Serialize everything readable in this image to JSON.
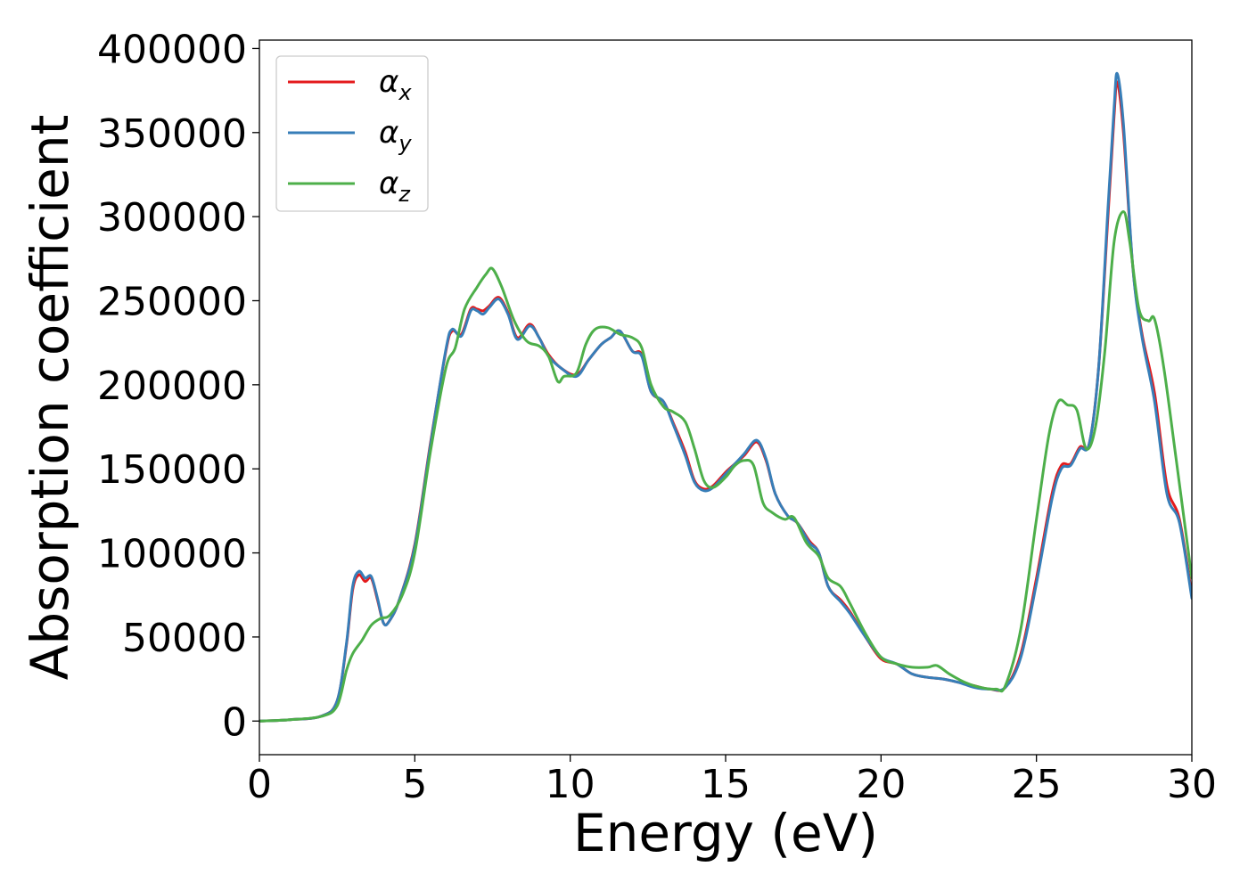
{
  "chart_data": {
    "type": "line",
    "xlabel": "Energy (eV)",
    "ylabel": "Absorption coefficient",
    "xlim": [
      0,
      30
    ],
    "ylim": [
      -20000,
      405000
    ],
    "xticks": [
      0,
      5,
      10,
      15,
      20,
      25,
      30
    ],
    "yticks": [
      0,
      50000,
      100000,
      150000,
      200000,
      250000,
      300000,
      350000,
      400000
    ],
    "grid": false,
    "legend_position": "top-left",
    "series": [
      {
        "name": "αx",
        "symbol": "α",
        "subscript": "x",
        "color": "#e41a1c",
        "x": [
          0,
          1,
          2,
          2.5,
          2.8,
          3.0,
          3.2,
          3.4,
          3.6,
          3.8,
          4.0,
          4.2,
          4.5,
          5.0,
          5.5,
          6.0,
          6.2,
          6.5,
          6.8,
          7.0,
          7.2,
          7.4,
          7.7,
          8.0,
          8.3,
          8.7,
          9.0,
          9.3,
          9.7,
          10.2,
          10.6,
          11.0,
          11.3,
          11.6,
          12.0,
          12.3,
          12.6,
          13.0,
          13.3,
          13.7,
          14.0,
          14.3,
          14.6,
          15.0,
          15.3,
          15.6,
          16.0,
          16.3,
          16.6,
          17.0,
          17.3,
          17.7,
          18.0,
          18.3,
          18.7,
          19.0,
          19.5,
          20.0,
          20.5,
          21.0,
          21.5,
          22.0,
          22.5,
          23.0,
          23.5,
          24.0,
          24.5,
          25.0,
          25.5,
          25.8,
          26.1,
          26.4,
          26.7,
          27.0,
          27.3,
          27.5,
          27.6,
          27.8,
          28.1,
          28.4,
          28.8,
          29.2,
          29.6,
          30.0
        ],
        "y": [
          0,
          800,
          3000,
          12000,
          45000,
          78000,
          87000,
          83000,
          85000,
          72000,
          58000,
          60000,
          72000,
          105000,
          165000,
          220000,
          232000,
          230000,
          245000,
          245000,
          244000,
          247000,
          252000,
          243000,
          228000,
          236000,
          228000,
          218000,
          210000,
          206000,
          215000,
          224000,
          228000,
          232000,
          220000,
          218000,
          196000,
          190000,
          178000,
          160000,
          143000,
          138000,
          140000,
          148000,
          153000,
          158000,
          166000,
          155000,
          135000,
          122000,
          118000,
          107000,
          100000,
          80000,
          72000,
          65000,
          50000,
          37000,
          34000,
          28000,
          26000,
          25000,
          23000,
          21000,
          19000,
          20000,
          40000,
          85000,
          135000,
          152000,
          153000,
          163000,
          165000,
          210000,
          300000,
          360000,
          380000,
          350000,
          270000,
          230000,
          195000,
          140000,
          120000,
          75000
        ]
      },
      {
        "name": "αy",
        "symbol": "α",
        "subscript": "y",
        "color": "#377eb8",
        "x": [
          0,
          1,
          2,
          2.5,
          2.8,
          3.0,
          3.2,
          3.4,
          3.6,
          3.8,
          4.0,
          4.2,
          4.5,
          5.0,
          5.5,
          6.0,
          6.2,
          6.5,
          6.8,
          7.0,
          7.2,
          7.4,
          7.7,
          8.0,
          8.3,
          8.7,
          9.0,
          9.3,
          9.7,
          10.2,
          10.6,
          11.0,
          11.3,
          11.6,
          12.0,
          12.3,
          12.6,
          13.0,
          13.3,
          13.7,
          14.0,
          14.3,
          14.6,
          15.0,
          15.3,
          15.6,
          16.0,
          16.3,
          16.6,
          17.0,
          17.3,
          17.7,
          18.0,
          18.3,
          18.7,
          19.0,
          19.5,
          20.0,
          20.5,
          21.0,
          21.5,
          22.0,
          22.5,
          23.0,
          23.5,
          24.0,
          24.5,
          25.0,
          25.5,
          25.8,
          26.1,
          26.4,
          26.7,
          27.0,
          27.3,
          27.5,
          27.6,
          27.8,
          28.1,
          28.4,
          28.8,
          29.2,
          29.6,
          30.0
        ],
        "y": [
          0,
          800,
          3000,
          12000,
          46000,
          80000,
          89000,
          85000,
          86000,
          73000,
          58000,
          60000,
          72000,
          104000,
          164000,
          221000,
          233000,
          229000,
          244000,
          244000,
          242000,
          246000,
          251000,
          242000,
          227000,
          235000,
          228000,
          217000,
          210000,
          205000,
          215000,
          224000,
          228000,
          232000,
          220000,
          217000,
          196000,
          190000,
          177000,
          158000,
          142000,
          137000,
          139000,
          147000,
          153000,
          159000,
          167000,
          156000,
          135000,
          122000,
          118000,
          106000,
          100000,
          80000,
          71000,
          64000,
          50000,
          38000,
          34000,
          28000,
          26000,
          25000,
          23000,
          20000,
          19000,
          20000,
          38000,
          82000,
          132000,
          150000,
          152000,
          162000,
          165000,
          210000,
          305000,
          365000,
          385000,
          355000,
          270000,
          228000,
          190000,
          135000,
          118000,
          73000
        ]
      },
      {
        "name": "αz",
        "symbol": "α",
        "subscript": "z",
        "color": "#4daf4a",
        "x": [
          0,
          1,
          2,
          2.5,
          2.8,
          3.0,
          3.3,
          3.6,
          3.9,
          4.2,
          4.6,
          5.0,
          5.5,
          6.0,
          6.3,
          6.6,
          7.0,
          7.3,
          7.5,
          7.8,
          8.2,
          8.6,
          9.0,
          9.3,
          9.6,
          9.8,
          10.2,
          10.5,
          10.8,
          11.2,
          11.6,
          12.0,
          12.3,
          12.6,
          13.0,
          13.3,
          13.7,
          14.0,
          14.3,
          14.6,
          15.0,
          15.3,
          15.6,
          15.9,
          16.2,
          16.5,
          16.9,
          17.2,
          17.6,
          18.0,
          18.3,
          18.7,
          19.0,
          19.5,
          20.0,
          20.5,
          21.0,
          21.5,
          21.8,
          22.2,
          22.7,
          23.2,
          23.7,
          24.0,
          24.5,
          25.0,
          25.4,
          25.7,
          26.0,
          26.3,
          26.6,
          26.9,
          27.2,
          27.5,
          27.8,
          28.0,
          28.3,
          28.6,
          28.8,
          29.1,
          29.5,
          30.0
        ],
        "y": [
          0,
          800,
          2800,
          9000,
          30000,
          40000,
          48000,
          57000,
          61000,
          63000,
          75000,
          100000,
          160000,
          210000,
          222000,
          245000,
          258000,
          266000,
          269000,
          258000,
          238000,
          226000,
          223000,
          217000,
          202000,
          205000,
          207000,
          224000,
          233000,
          234000,
          230000,
          228000,
          222000,
          200000,
          187000,
          184000,
          178000,
          162000,
          143000,
          139000,
          145000,
          152000,
          155000,
          152000,
          130000,
          124000,
          120000,
          121000,
          106000,
          98000,
          85000,
          80000,
          70000,
          52000,
          38000,
          34000,
          32000,
          32000,
          33000,
          28000,
          23000,
          20000,
          19000,
          21000,
          55000,
          120000,
          170000,
          190000,
          188000,
          185000,
          162000,
          175000,
          220000,
          285000,
          303000,
          285000,
          245000,
          238000,
          239000,
          210000,
          155000,
          85000
        ]
      }
    ]
  }
}
